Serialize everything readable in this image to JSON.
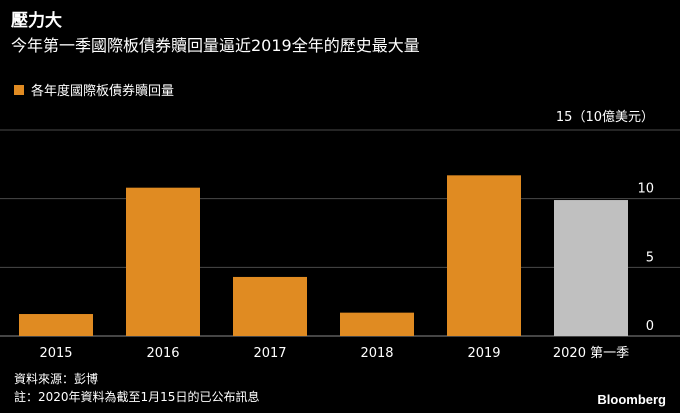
{
  "title": "壓力大",
  "subtitle": "今年第一季國際板債券贖回量逼近2019全年的歷史最大量",
  "legend": {
    "label": "各年度國際板債券贖回量",
    "color": "#e08b22"
  },
  "chart_data": {
    "type": "bar",
    "categories": [
      "2015",
      "2016",
      "2017",
      "2018",
      "2019",
      "2020 第一季"
    ],
    "values": [
      1.6,
      10.8,
      4.3,
      1.7,
      11.7,
      9.9
    ],
    "bar_colors": [
      "#e08b22",
      "#e08b22",
      "#e08b22",
      "#e08b22",
      "#e08b22",
      "#c0c0c0"
    ],
    "ylim": [
      0,
      15
    ],
    "yticks": [
      0,
      5,
      10
    ],
    "top_tick_label": "15（10億美元）",
    "grid": true,
    "legend_position": "top-left"
  },
  "notes": {
    "source": "資料來源：彭博",
    "footnote": "註：2020年資料為截至1月15日的已公布訊息"
  },
  "brand": "Bloomberg"
}
